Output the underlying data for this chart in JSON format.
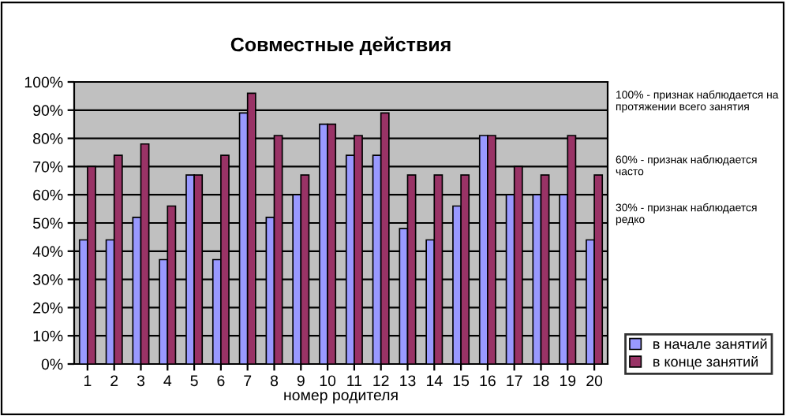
{
  "chart_data": {
    "type": "bar",
    "title": "Совместные действия",
    "xlabel": "номер родителя",
    "categories": [
      "1",
      "2",
      "3",
      "4",
      "5",
      "6",
      "7",
      "8",
      "9",
      "10",
      "11",
      "12",
      "13",
      "14",
      "15",
      "16",
      "17",
      "18",
      "19",
      "20"
    ],
    "series": [
      {
        "name": "в начале занятий",
        "color": "#9999ff",
        "values": [
          44,
          44,
          52,
          37,
          67,
          37,
          89,
          52,
          60,
          85,
          74,
          74,
          48,
          44,
          56,
          81,
          60,
          60,
          60,
          44
        ]
      },
      {
        "name": "в конце занятий",
        "color": "#993366",
        "values": [
          70,
          74,
          78,
          56,
          67,
          74,
          96,
          81,
          67,
          85,
          81,
          89,
          67,
          67,
          67,
          81,
          70,
          67,
          81,
          67
        ]
      }
    ],
    "ylim": [
      0,
      100
    ],
    "yticks": [
      {
        "value": 0,
        "label": "0%"
      },
      {
        "value": 10,
        "label": "10%"
      },
      {
        "value": 20,
        "label": "20%"
      },
      {
        "value": 30,
        "label": "30%"
      },
      {
        "value": 40,
        "label": "40%"
      },
      {
        "value": 50,
        "label": "50%"
      },
      {
        "value": 60,
        "label": "60%"
      },
      {
        "value": 70,
        "label": "70%"
      },
      {
        "value": 80,
        "label": "80%"
      },
      {
        "value": 90,
        "label": "90%"
      },
      {
        "value": 100,
        "label": "100%"
      }
    ],
    "grid": "y",
    "legend": "bottom right",
    "annotations": [
      "100% - признак наблюдается на протяжении всего занятия",
      "60% - признак наблюдается часто",
      "30% - признак наблюдается редко"
    ]
  }
}
